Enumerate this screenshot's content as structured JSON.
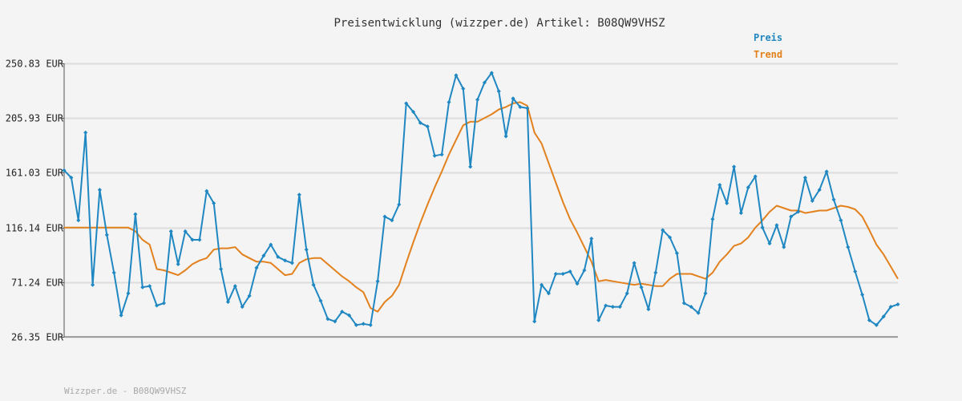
{
  "chart_data": {
    "type": "line",
    "title": "Preisentwicklung (wizzper.de) Artikel: B08QW9VHSZ",
    "footer": "Wizzper.de - B08QW9VHSZ",
    "ylim": [
      26.35,
      250.83
    ],
    "y_tick_labels": [
      "250.83 EUR",
      "205.93 EUR",
      "161.03 EUR",
      "116.14 EUR",
      "71.24 EUR",
      "26.35 EUR"
    ],
    "y_tick_values": [
      250.83,
      205.93,
      161.03,
      116.14,
      71.24,
      26.35
    ],
    "grid": true,
    "legend_position": "top-right",
    "colors": {
      "preis": "#1f87c1",
      "trend": "#e2811d",
      "grid": "#dddddd",
      "axis": "#555555"
    },
    "series": [
      {
        "name": "Preis",
        "values": [
          163,
          157,
          122,
          194,
          69,
          147,
          110,
          79,
          44,
          62,
          127,
          67,
          68,
          52,
          54,
          113,
          86,
          113,
          106,
          106,
          146,
          136,
          82,
          55,
          68,
          51,
          60,
          83,
          93,
          102,
          92,
          89,
          87,
          143,
          98,
          69,
          56,
          41,
          39,
          47,
          44,
          36,
          37,
          36,
          72,
          125,
          122,
          135,
          218,
          211,
          202,
          199,
          175,
          176,
          219,
          241,
          230,
          166,
          221,
          235,
          243,
          228,
          191,
          222,
          215,
          214,
          39,
          69,
          62,
          78,
          78,
          80,
          70,
          81,
          107,
          40,
          52,
          51,
          51,
          62,
          87,
          67,
          49,
          79,
          114,
          108,
          95,
          54,
          51,
          46,
          62,
          123,
          151,
          136,
          166,
          128,
          149,
          158,
          116,
          103,
          118,
          100,
          125,
          129,
          157,
          138,
          147,
          162,
          139,
          122,
          100,
          80,
          61,
          40,
          36,
          43,
          51,
          53
        ]
      },
      {
        "name": "Trend",
        "values": [
          116,
          116,
          116,
          116,
          116,
          116,
          116,
          116,
          116,
          116,
          113,
          106,
          102,
          82,
          81,
          79,
          77,
          81,
          86,
          89,
          91,
          98,
          99,
          99,
          100,
          94,
          91,
          88,
          88,
          87,
          82,
          77,
          78,
          87,
          90,
          91,
          91,
          86,
          81,
          76,
          72,
          67,
          63,
          50,
          47,
          55,
          60,
          69,
          87,
          104,
          120,
          135,
          149,
          162,
          176,
          188,
          200,
          203,
          203,
          206,
          209,
          213,
          215,
          218,
          219,
          216,
          194,
          185,
          169,
          153,
          137,
          123,
          112,
          100,
          88,
          72,
          73,
          72,
          71,
          70,
          69,
          70,
          69,
          68,
          68,
          74,
          78,
          78,
          78,
          76,
          74,
          79,
          88,
          94,
          101,
          103,
          108,
          116,
          122,
          129,
          134,
          132,
          130,
          130,
          128,
          129,
          130,
          130,
          132,
          134,
          133,
          131,
          125,
          114,
          102,
          94,
          84,
          74
        ]
      }
    ]
  }
}
